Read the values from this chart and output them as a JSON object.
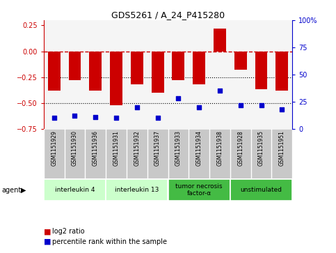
{
  "title": "GDS5261 / A_24_P415280",
  "samples": [
    "GSM1151929",
    "GSM1151930",
    "GSM1151936",
    "GSM1151931",
    "GSM1151932",
    "GSM1151937",
    "GSM1151933",
    "GSM1151934",
    "GSM1151938",
    "GSM1151928",
    "GSM1151935",
    "GSM1151951"
  ],
  "log2_ratio": [
    -0.38,
    -0.28,
    -0.38,
    -0.52,
    -0.32,
    -0.4,
    -0.28,
    -0.32,
    0.22,
    -0.18,
    -0.37,
    -0.38
  ],
  "percentile_rank": [
    10,
    12,
    11,
    10,
    20,
    10,
    28,
    20,
    35,
    22,
    22,
    18
  ],
  "groups": [
    {
      "label": "interleukin 4",
      "start": 0,
      "end": 3,
      "color": "#ccffcc"
    },
    {
      "label": "interleukin 13",
      "start": 3,
      "end": 6,
      "color": "#ccffcc"
    },
    {
      "label": "tumor necrosis\nfactor-α",
      "start": 6,
      "end": 9,
      "color": "#44bb44"
    },
    {
      "label": "unstimulated",
      "start": 9,
      "end": 12,
      "color": "#44bb44"
    }
  ],
  "ylim_left": [
    -0.75,
    0.3
  ],
  "ylim_right": [
    0,
    100
  ],
  "yticks_left": [
    0.25,
    0.0,
    -0.25,
    -0.5,
    -0.75
  ],
  "yticks_right": [
    100,
    75,
    50,
    25,
    0
  ],
  "bar_color": "#cc0000",
  "dot_color": "#0000cc",
  "hline_color": "#cc0000",
  "dotted_lines": [
    -0.25,
    -0.5
  ],
  "background_color": "#ffffff",
  "plot_bg": "#f5f5f5",
  "label_bg": "#c8c8c8",
  "bar_width": 0.6
}
